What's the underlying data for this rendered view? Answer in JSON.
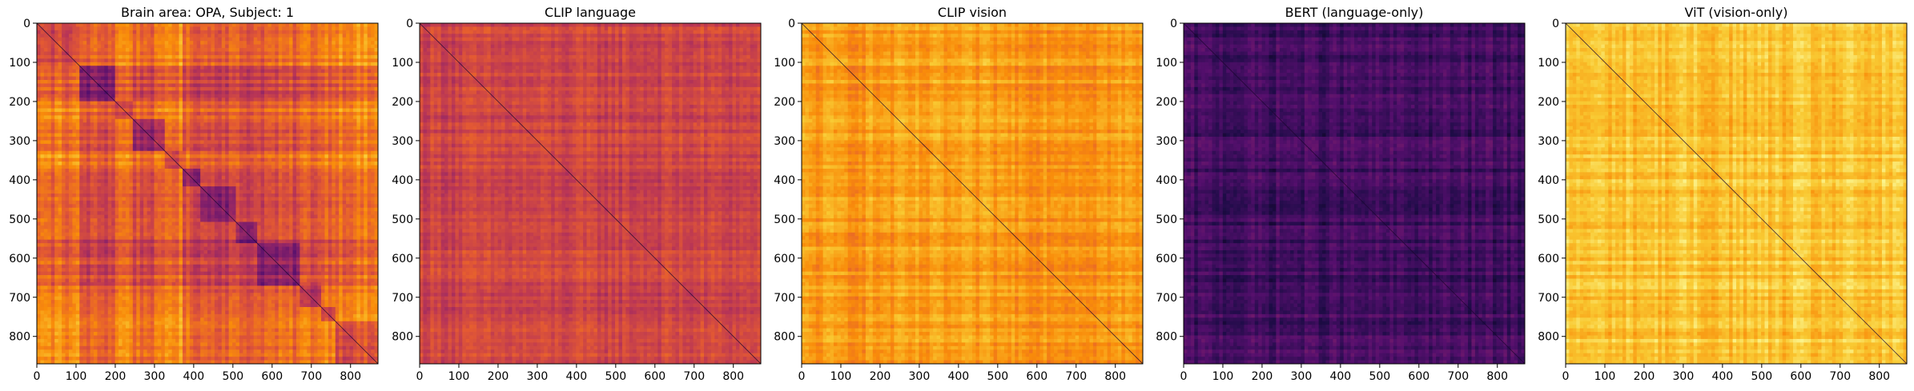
{
  "chart_data": [
    {
      "type": "heatmap",
      "title": "Brain area: OPA, Subject: 1",
      "colormap": "inferno",
      "pattern": "blocks",
      "base_level": 0.62,
      "x_ticks": [
        0,
        100,
        200,
        300,
        400,
        500,
        600,
        700,
        800
      ],
      "y_ticks": [
        0,
        100,
        200,
        300,
        400,
        500,
        600,
        700,
        800
      ],
      "xlim": [
        0,
        870
      ],
      "ylim": [
        870,
        0
      ],
      "diagonal": "dark"
    },
    {
      "type": "heatmap",
      "title": "CLIP language",
      "colormap": "inferno",
      "pattern": "stripes",
      "base_level": 0.55,
      "x_ticks": [
        0,
        100,
        200,
        300,
        400,
        500,
        600,
        700,
        800
      ],
      "y_ticks": [
        0,
        100,
        200,
        300,
        400,
        500,
        600,
        700,
        800
      ],
      "xlim": [
        0,
        870
      ],
      "ylim": [
        870,
        0
      ],
      "diagonal": "dark"
    },
    {
      "type": "heatmap",
      "title": "CLIP vision",
      "colormap": "inferno",
      "pattern": "stripes",
      "base_level": 0.78,
      "x_ticks": [
        0,
        100,
        200,
        300,
        400,
        500,
        600,
        700,
        800
      ],
      "y_ticks": [
        0,
        100,
        200,
        300,
        400,
        500,
        600,
        700,
        800
      ],
      "xlim": [
        0,
        870
      ],
      "ylim": [
        870,
        0
      ],
      "diagonal": "dark"
    },
    {
      "type": "heatmap",
      "title": "BERT (language-only)",
      "colormap": "inferno",
      "pattern": "stripes",
      "base_level": 0.2,
      "x_ticks": [
        0,
        100,
        200,
        300,
        400,
        500,
        600,
        700,
        800
      ],
      "y_ticks": [
        0,
        100,
        200,
        300,
        400,
        500,
        600,
        700,
        800
      ],
      "xlim": [
        0,
        870
      ],
      "ylim": [
        870,
        0
      ],
      "diagonal": "dark"
    },
    {
      "type": "heatmap",
      "title": "ViT (vision-only)",
      "colormap": "inferno",
      "pattern": "stripes",
      "base_level": 0.86,
      "x_ticks": [
        0,
        100,
        200,
        300,
        400,
        500,
        600,
        700,
        800
      ],
      "y_ticks": [
        0,
        100,
        200,
        300,
        400,
        500,
        600,
        700,
        800
      ],
      "xlim": [
        0,
        870
      ],
      "ylim": [
        870,
        0
      ],
      "diagonal": "dark"
    }
  ]
}
